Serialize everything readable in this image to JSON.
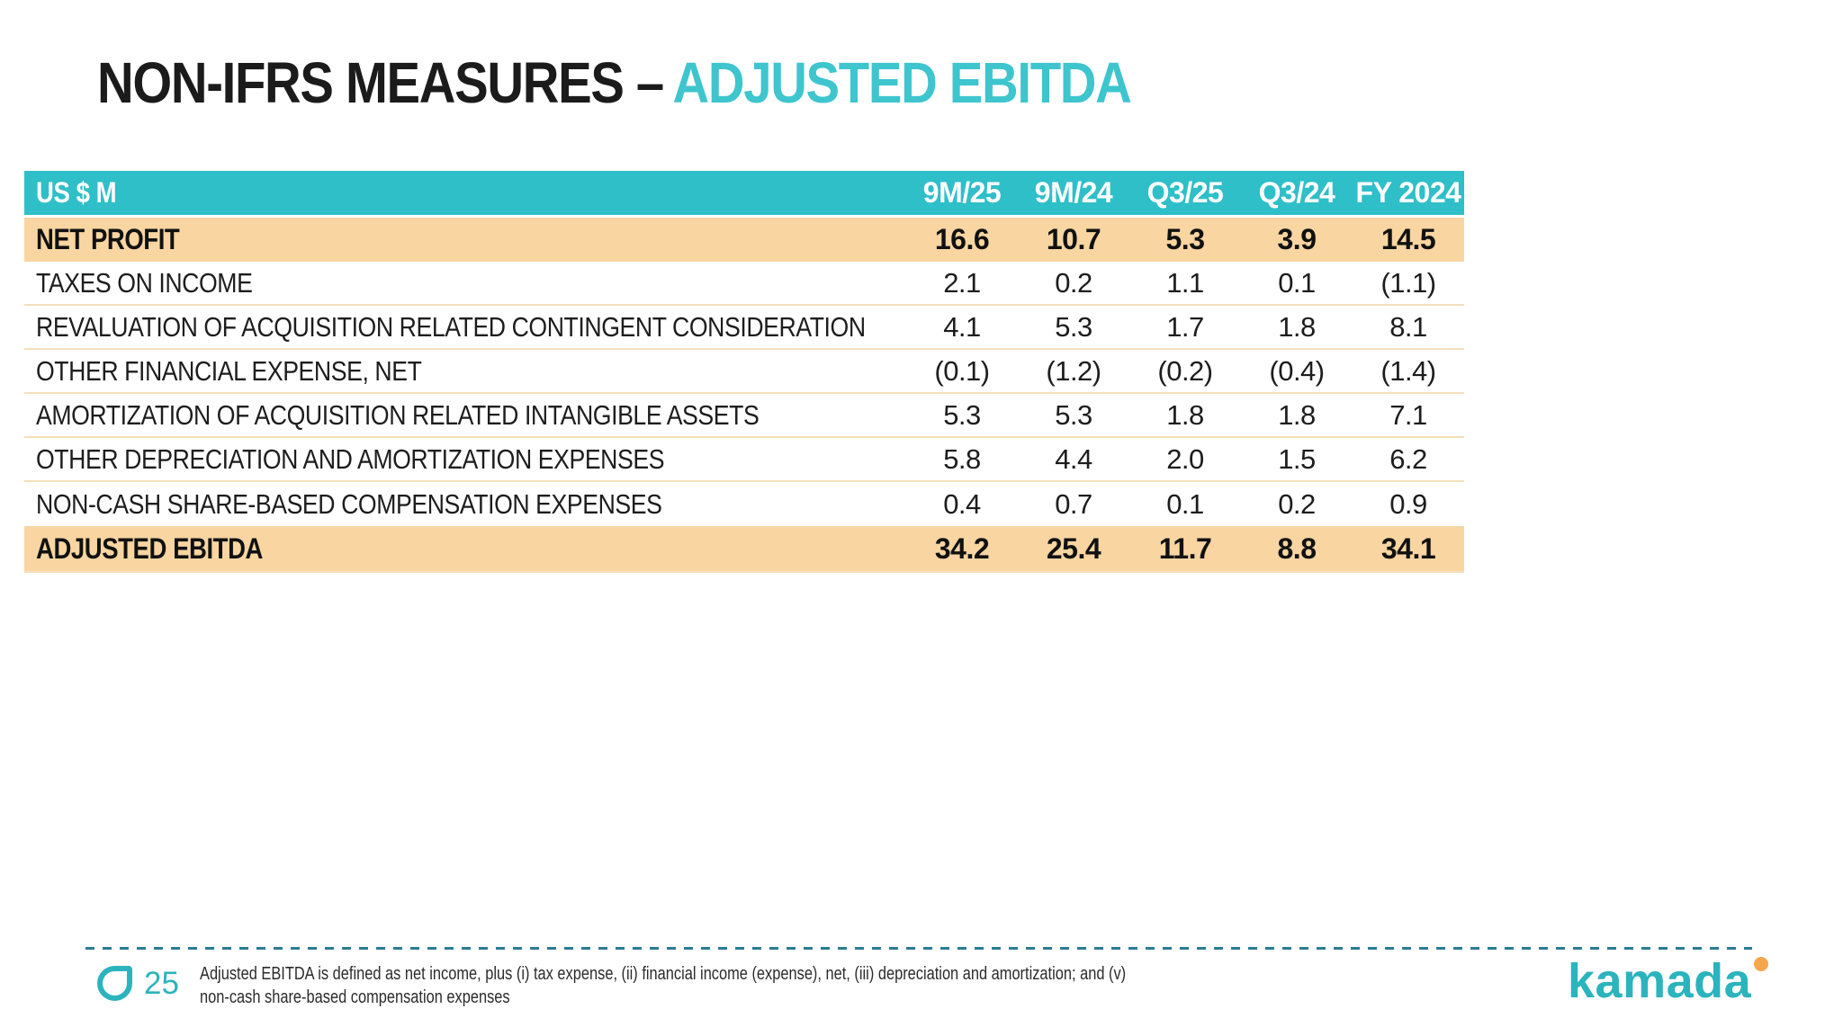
{
  "slide": {
    "title": {
      "prefix": "NON-IFRS MEASURES –",
      "accent": "ADJUSTED EBITDA"
    },
    "table": {
      "unit_label": "US $ M",
      "columns": [
        "9M/25",
        "9M/24",
        "Q3/25",
        "Q3/24",
        "FY 2024"
      ],
      "rows": [
        {
          "label": "NET PROFIT",
          "values": [
            "16.6",
            "10.7",
            "5.3",
            "3.9",
            "14.5"
          ],
          "emphasis": true
        },
        {
          "label": "TAXES ON INCOME",
          "values": [
            "2.1",
            "0.2",
            "1.1",
            "0.1",
            "(1.1)"
          ],
          "emphasis": false
        },
        {
          "label": "REVALUATION OF ACQUISITION RELATED CONTINGENT CONSIDERATION",
          "values": [
            "4.1",
            "5.3",
            "1.7",
            "1.8",
            "8.1"
          ],
          "emphasis": false
        },
        {
          "label": "OTHER FINANCIAL EXPENSE, NET",
          "values": [
            "(0.1)",
            "(1.2)",
            "(0.2)",
            "(0.4)",
            "(1.4)"
          ],
          "emphasis": false
        },
        {
          "label": "AMORTIZATION OF ACQUISITION RELATED INTANGIBLE ASSETS",
          "values": [
            "5.3",
            "5.3",
            "1.8",
            "1.8",
            "7.1"
          ],
          "emphasis": false
        },
        {
          "label": "OTHER DEPRECIATION AND AMORTIZATION EXPENSES",
          "values": [
            "5.8",
            "4.4",
            "2.0",
            "1.5",
            "6.2"
          ],
          "emphasis": false
        },
        {
          "label": "NON-CASH SHARE-BASED COMPENSATION EXPENSES",
          "values": [
            "0.4",
            "0.7",
            "0.1",
            "0.2",
            "0.9"
          ],
          "emphasis": false
        },
        {
          "label": "ADJUSTED EBITDA",
          "values": [
            "34.2",
            "25.4",
            "11.7",
            "8.8",
            "34.1"
          ],
          "emphasis": true
        }
      ]
    },
    "footer": {
      "page_number": "25",
      "footnote_lines": [
        "Adjusted EBITDA is defined as net income, plus (i) tax expense, (ii) financial income (expense), net, (iii) depreciation and amortization; and (v)",
        "non-cash share-based compensation expenses"
      ],
      "logo_text": "kamada",
      "mark_icon": "kamada-drop-icon",
      "logo_dot_icon": "orange-dot"
    },
    "colors": {
      "accent_teal": "#3EC5CE",
      "header_teal": "#2FBFC8",
      "highlight_orange": "#F8D5A1",
      "row_separator": "#F5DFBC",
      "dash_line": "#2B7C96",
      "logo_teal": "#2BB4BD",
      "logo_dot_orange": "#F5A74E",
      "text_dark": "#1D1D1D"
    }
  }
}
